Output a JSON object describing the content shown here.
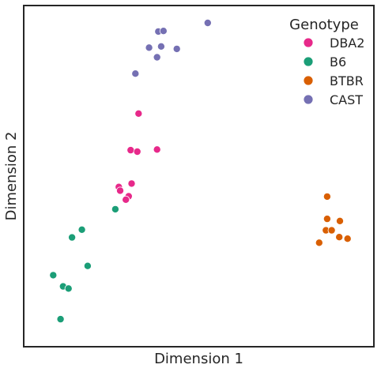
{
  "chart_data": {
    "type": "scatter",
    "title": "",
    "xlabel": "Dimension 1",
    "ylabel": "Dimension 2",
    "xlim": [
      0,
      100
    ],
    "ylim": [
      0,
      100
    ],
    "grid": false,
    "ticks": "none",
    "legend": {
      "title": "Genotype",
      "placement": "top-right"
    },
    "series": [
      {
        "name": "DBA2",
        "color": "#e7298a",
        "points": [
          {
            "x": 31.1,
            "y": 70.2
          },
          {
            "x": 28.6,
            "y": 58.4
          },
          {
            "x": 30.7,
            "y": 57.9
          },
          {
            "x": 36.9,
            "y": 58.6
          },
          {
            "x": 28.9,
            "y": 47.6
          },
          {
            "x": 24.9,
            "y": 46.5
          },
          {
            "x": 25.3,
            "y": 45.3
          },
          {
            "x": 28.0,
            "y": 43.5
          },
          {
            "x": 27.1,
            "y": 42.4
          }
        ]
      },
      {
        "name": "B6",
        "color": "#1b9e77",
        "points": [
          {
            "x": 23.8,
            "y": 39.3
          },
          {
            "x": 13.3,
            "y": 32.7
          },
          {
            "x": 10.2,
            "y": 30.2
          },
          {
            "x": 15.1,
            "y": 21.0
          },
          {
            "x": 4.3,
            "y": 18.0
          },
          {
            "x": 7.4,
            "y": 14.4
          },
          {
            "x": 9.1,
            "y": 13.7
          },
          {
            "x": 6.6,
            "y": 3.8
          }
        ]
      },
      {
        "name": "BTBR",
        "color": "#d95f02",
        "points": [
          {
            "x": 90.3,
            "y": 43.4
          },
          {
            "x": 90.3,
            "y": 36.2
          },
          {
            "x": 94.3,
            "y": 35.5
          },
          {
            "x": 89.9,
            "y": 32.5
          },
          {
            "x": 91.7,
            "y": 32.5
          },
          {
            "x": 94.1,
            "y": 30.3
          },
          {
            "x": 96.7,
            "y": 29.8
          },
          {
            "x": 87.8,
            "y": 28.5
          }
        ]
      },
      {
        "name": "CAST",
        "color": "#7570b3",
        "points": [
          {
            "x": 52.8,
            "y": 99.5
          },
          {
            "x": 37.3,
            "y": 96.7
          },
          {
            "x": 38.9,
            "y": 96.9
          },
          {
            "x": 38.2,
            "y": 91.9
          },
          {
            "x": 34.4,
            "y": 91.5
          },
          {
            "x": 43.1,
            "y": 91.1
          },
          {
            "x": 36.9,
            "y": 88.4
          },
          {
            "x": 30.1,
            "y": 83.1
          }
        ]
      }
    ]
  }
}
